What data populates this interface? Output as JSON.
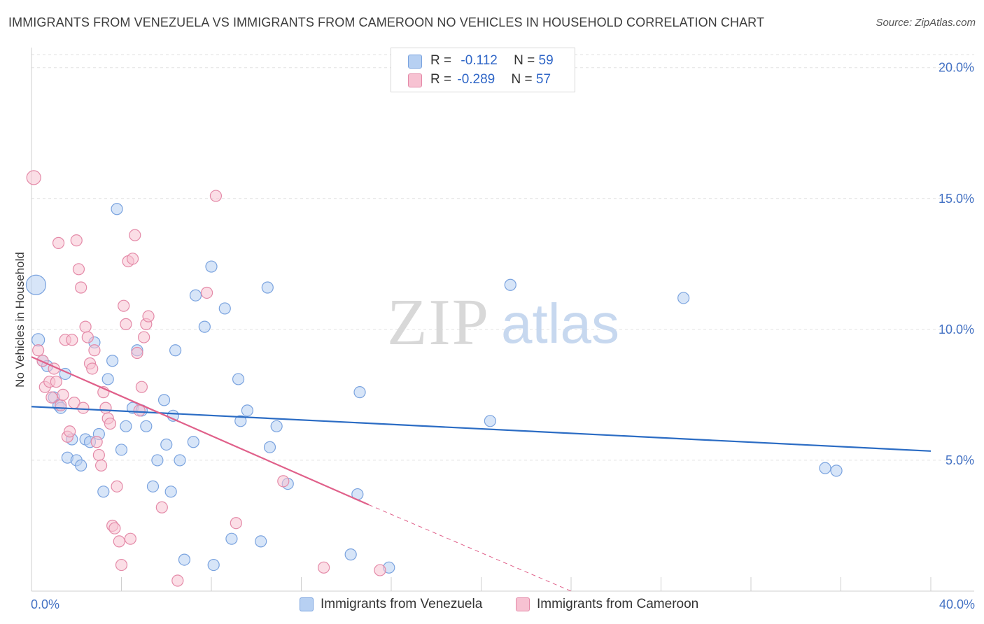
{
  "header": {
    "title": "IMMIGRANTS FROM VENEZUELA VS IMMIGRANTS FROM CAMEROON NO VEHICLES IN HOUSEHOLD CORRELATION CHART",
    "source": "Source: ZipAtlas.com"
  },
  "legend": {
    "venezuela": {
      "r_label": "R = ",
      "r_value": "-0.112",
      "n_label": "N = ",
      "n_value": "59"
    },
    "cameroon": {
      "r_label": "R = ",
      "r_value": "-0.289",
      "n_label": "N = ",
      "n_value": "57"
    }
  },
  "bottom_legend": {
    "venezuela": "Immigrants from Venezuela",
    "cameroon": "Immigrants from Cameroon"
  },
  "colors": {
    "venezuela_fill": "#b7d0f2",
    "venezuela_stroke": "#7aa3df",
    "venezuela_line": "#2b6cc4",
    "cameroon_fill": "#f7c2d2",
    "cameroon_stroke": "#e48aa8",
    "cameroon_line": "#e0608a",
    "tick_color": "#4472c4",
    "grid": "#e2e2e2"
  },
  "chart_data": {
    "type": "scatter",
    "title": "IMMIGRANTS FROM VENEZUELA VS IMMIGRANTS FROM CAMEROON NO VEHICLES IN HOUSEHOLD CORRELATION CHART",
    "xlabel": "",
    "ylabel": "No Vehicles in Household",
    "xlim": [
      0,
      40
    ],
    "ylim": [
      0,
      20.5
    ],
    "x_tick_labels": [
      "0.0%",
      "40.0%"
    ],
    "y_ticks": [
      5,
      10,
      15,
      20
    ],
    "y_tick_labels": [
      "5.0%",
      "10.0%",
      "15.0%",
      "20.0%"
    ],
    "grid": true,
    "legend_position": "top-center",
    "watermark": {
      "zip": "ZIP",
      "atlas": "atlas"
    },
    "series": [
      {
        "name": "Immigrants from Venezuela",
        "points": [
          [
            0.2,
            11.7,
            28
          ],
          [
            0.3,
            9.6,
            18
          ],
          [
            0.5,
            8.8,
            16
          ],
          [
            0.7,
            8.6,
            16
          ],
          [
            1.0,
            7.4,
            16
          ],
          [
            1.2,
            7.1,
            16
          ],
          [
            1.3,
            7.0,
            16
          ],
          [
            1.5,
            8.3,
            16
          ],
          [
            1.6,
            5.1,
            16
          ],
          [
            1.8,
            5.8,
            16
          ],
          [
            2.0,
            5.0,
            16
          ],
          [
            2.2,
            4.8,
            16
          ],
          [
            2.4,
            5.8,
            16
          ],
          [
            2.6,
            5.7,
            16
          ],
          [
            2.8,
            9.5,
            16
          ],
          [
            3.0,
            6.0,
            16
          ],
          [
            3.2,
            3.8,
            16
          ],
          [
            3.4,
            8.1,
            16
          ],
          [
            3.6,
            8.8,
            16
          ],
          [
            3.8,
            14.6,
            16
          ],
          [
            4.0,
            5.4,
            16
          ],
          [
            4.2,
            6.3,
            16
          ],
          [
            4.5,
            7.0,
            16
          ],
          [
            4.7,
            9.2,
            16
          ],
          [
            4.9,
            6.9,
            16
          ],
          [
            5.1,
            6.3,
            16
          ],
          [
            5.4,
            4.0,
            16
          ],
          [
            5.6,
            5.0,
            16
          ],
          [
            5.9,
            7.3,
            16
          ],
          [
            6.0,
            5.6,
            16
          ],
          [
            6.2,
            3.8,
            16
          ],
          [
            6.3,
            6.7,
            16
          ],
          [
            6.4,
            9.2,
            16
          ],
          [
            6.6,
            5.0,
            16
          ],
          [
            6.8,
            1.2,
            16
          ],
          [
            7.2,
            5.7,
            16
          ],
          [
            7.3,
            11.3,
            16
          ],
          [
            7.7,
            10.1,
            16
          ],
          [
            8.0,
            12.4,
            16
          ],
          [
            8.1,
            1.0,
            16
          ],
          [
            8.6,
            10.8,
            16
          ],
          [
            8.9,
            2.0,
            16
          ],
          [
            9.2,
            8.1,
            16
          ],
          [
            9.3,
            6.5,
            16
          ],
          [
            9.6,
            6.9,
            16
          ],
          [
            10.2,
            1.9,
            16
          ],
          [
            10.5,
            11.6,
            16
          ],
          [
            10.6,
            5.5,
            16
          ],
          [
            10.9,
            6.3,
            16
          ],
          [
            11.4,
            4.1,
            16
          ],
          [
            14.2,
            1.4,
            16
          ],
          [
            14.5,
            3.7,
            16
          ],
          [
            14.6,
            7.6,
            16
          ],
          [
            15.9,
            0.9,
            16
          ],
          [
            20.4,
            6.5,
            16
          ],
          [
            21.3,
            11.7,
            16
          ],
          [
            29.0,
            11.2,
            16
          ],
          [
            35.3,
            4.7,
            16
          ],
          [
            35.8,
            4.6,
            16
          ]
        ],
        "trend": {
          "x": [
            0,
            40
          ],
          "y": [
            7.05,
            5.35
          ]
        }
      },
      {
        "name": "Immigrants from Cameroon",
        "points": [
          [
            0.1,
            15.8,
            20
          ],
          [
            0.3,
            9.2,
            16
          ],
          [
            0.5,
            8.8,
            16
          ],
          [
            0.6,
            7.8,
            16
          ],
          [
            0.8,
            8.0,
            16
          ],
          [
            0.9,
            7.4,
            16
          ],
          [
            1.0,
            8.5,
            16
          ],
          [
            1.1,
            8.0,
            16
          ],
          [
            1.2,
            13.3,
            16
          ],
          [
            1.3,
            7.1,
            16
          ],
          [
            1.4,
            7.5,
            16
          ],
          [
            1.5,
            9.6,
            16
          ],
          [
            1.6,
            5.9,
            16
          ],
          [
            1.7,
            6.1,
            16
          ],
          [
            1.8,
            9.6,
            16
          ],
          [
            1.9,
            7.2,
            16
          ],
          [
            2.0,
            13.4,
            16
          ],
          [
            2.1,
            12.3,
            16
          ],
          [
            2.2,
            11.6,
            16
          ],
          [
            2.3,
            7.0,
            16
          ],
          [
            2.4,
            10.1,
            16
          ],
          [
            2.5,
            9.7,
            16
          ],
          [
            2.6,
            8.7,
            16
          ],
          [
            2.7,
            8.5,
            16
          ],
          [
            2.8,
            9.2,
            16
          ],
          [
            2.9,
            5.7,
            16
          ],
          [
            3.0,
            5.2,
            16
          ],
          [
            3.1,
            4.8,
            16
          ],
          [
            3.2,
            7.6,
            16
          ],
          [
            3.3,
            7.0,
            16
          ],
          [
            3.4,
            6.6,
            16
          ],
          [
            3.5,
            6.4,
            16
          ],
          [
            3.6,
            2.5,
            16
          ],
          [
            3.7,
            2.4,
            16
          ],
          [
            3.8,
            4.0,
            16
          ],
          [
            3.9,
            1.9,
            16
          ],
          [
            4.0,
            1.0,
            16
          ],
          [
            4.1,
            10.9,
            16
          ],
          [
            4.2,
            10.2,
            16
          ],
          [
            4.3,
            12.6,
            16
          ],
          [
            4.4,
            2.0,
            16
          ],
          [
            4.5,
            12.7,
            16
          ],
          [
            4.6,
            13.6,
            16
          ],
          [
            4.7,
            9.1,
            16
          ],
          [
            4.8,
            6.9,
            16
          ],
          [
            4.9,
            7.8,
            16
          ],
          [
            5.0,
            9.7,
            16
          ],
          [
            5.1,
            10.2,
            16
          ],
          [
            5.2,
            10.5,
            16
          ],
          [
            5.8,
            3.2,
            16
          ],
          [
            6.5,
            0.4,
            16
          ],
          [
            7.8,
            11.4,
            16
          ],
          [
            8.2,
            15.1,
            16
          ],
          [
            9.1,
            2.6,
            16
          ],
          [
            11.2,
            4.2,
            16
          ],
          [
            13.0,
            0.9,
            16
          ],
          [
            15.5,
            0.8,
            16
          ]
        ],
        "trend": {
          "x": [
            0,
            15.0
          ],
          "y": [
            8.95,
            3.3
          ]
        },
        "trend_extension": {
          "x": [
            15.0,
            24.0
          ],
          "y": [
            3.3,
            0.0
          ]
        }
      }
    ]
  }
}
